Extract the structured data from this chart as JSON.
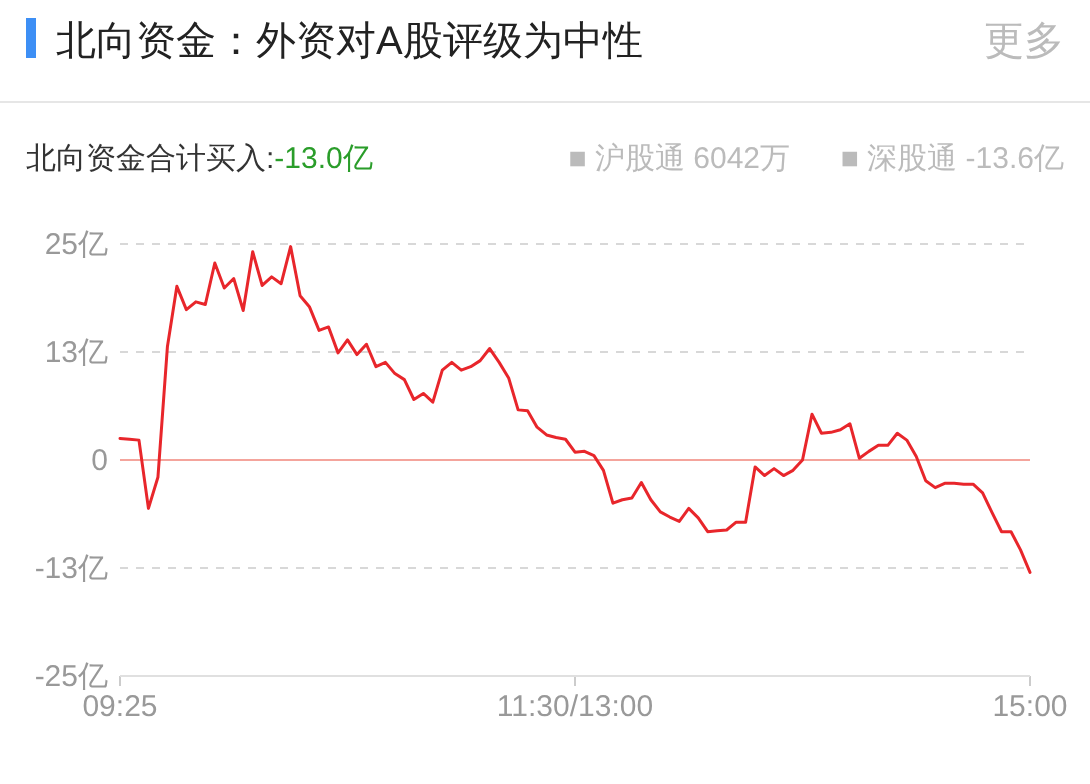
{
  "chart_data": {
    "type": "line",
    "title": "北向资金：外资对A股评级为中性",
    "subtitle": "北向资金合计买入:-13.0亿",
    "annotations": [
      "更多",
      "■ 沪股通 6042万",
      "■ 深股通 -13.6亿"
    ],
    "categories": [
      "09:25",
      null,
      null,
      null,
      null,
      null,
      null,
      null,
      null,
      null,
      null,
      null,
      null,
      null,
      null,
      null,
      null,
      null,
      null,
      null,
      null,
      null,
      null,
      null,
      null,
      null,
      null,
      null,
      null,
      null,
      null,
      null,
      null,
      null,
      null,
      null,
      null,
      null,
      null,
      null,
      null,
      null,
      null,
      null,
      null,
      null,
      null,
      null,
      "11:30/13:00",
      null,
      null,
      null,
      null,
      null,
      null,
      null,
      null,
      null,
      null,
      null,
      null,
      null,
      null,
      null,
      null,
      null,
      null,
      null,
      null,
      null,
      null,
      null,
      null,
      null,
      null,
      null,
      null,
      null,
      null,
      null,
      null,
      null,
      null,
      null,
      null,
      null,
      null,
      null,
      null,
      null,
      null,
      null,
      null,
      null,
      null,
      null,
      "15:00"
    ],
    "series": [
      {
        "color": "#e8262b",
        "values": [
          2.5,
          2.4,
          2.3,
          -5.6,
          -2.0,
          13.1,
          20.1,
          17.4,
          18.3,
          18.0,
          22.8,
          19.9,
          21.0,
          17.3,
          24.1,
          20.2,
          21.2,
          20.4,
          24.7,
          19.0,
          17.7,
          15.0,
          15.4,
          12.4,
          13.9,
          12.2,
          13.4,
          10.8,
          11.3,
          10.0,
          9.3,
          7.0,
          7.7,
          6.7,
          10.4,
          11.3,
          10.4,
          10.8,
          11.5,
          12.9,
          11.3,
          9.5,
          5.8,
          5.7,
          3.8,
          2.9,
          2.6,
          2.4,
          0.9,
          1.0,
          0.5,
          -1.2,
          -5.0,
          -4.6,
          -4.4,
          -2.6,
          -4.6,
          -6.0,
          -6.6,
          -7.1,
          -5.6,
          -6.7,
          -8.3,
          -8.2,
          -8.1,
          -7.2,
          -7.2,
          -0.8,
          -1.8,
          -1.0,
          -1.8,
          -1.2,
          0.0,
          5.3,
          3.1,
          3.2,
          3.5,
          4.2,
          0.2,
          1.0,
          1.7,
          1.7,
          3.1,
          2.3,
          0.4,
          -2.4,
          -3.2,
          -2.7,
          -2.7,
          -2.8,
          -2.8,
          -3.8,
          -6.1,
          -8.3,
          -8.3,
          -10.4,
          -13.0
        ]
      }
    ],
    "ylim": [
      -25,
      25
    ],
    "yticks": [
      {
        "value": -25,
        "label": "-25亿"
      },
      {
        "value": -12.5,
        "label": "-13亿"
      },
      {
        "value": 0,
        "label": "0"
      },
      {
        "value": 12.5,
        "label": "13亿"
      },
      {
        "value": 25,
        "label": "25亿"
      }
    ],
    "grid": "y",
    "ref_lines": [
      {
        "axis": "y",
        "value": 0,
        "color": "#f4a49c"
      }
    ],
    "marker": "none",
    "line_style": "solid"
  }
}
